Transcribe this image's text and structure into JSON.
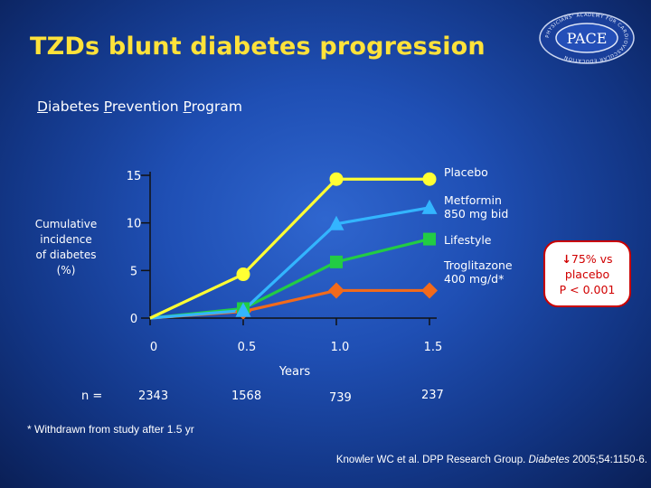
{
  "slide": {
    "title": "TZDs blunt diabetes progression",
    "subtitle": {
      "d": "D",
      "iabetes": "iabetes ",
      "p1": "P",
      "revention": "revention ",
      "p2": "P",
      "rogram": "rogram"
    },
    "logo_text": "PACE",
    "logo_ring_text": "PHYSICIANS' ACADEMY FOR CARDIOVASCULAR EDUCATION",
    "ylabel_lines": [
      "Cumulative",
      "incidence",
      "of diabetes",
      "(%)"
    ],
    "callout": {
      "line1": "75% vs",
      "line2": "placebo",
      "line3": "P < 0.001"
    },
    "n_label": "n =",
    "n_values": [
      "2343",
      "1568",
      "739",
      "237"
    ],
    "footnote": "* Withdrawn from study after 1.5 yr",
    "citation": {
      "prefix": "Knowler WC et al. DPP Research Group. ",
      "journal": "Diabetes",
      "suffix": " 2005;54:1150-6."
    }
  },
  "colors": {
    "title": "#ffe23a",
    "placebo": "#ffff33",
    "metformin": "#33b5ff",
    "lifestyle": "#22cc44",
    "troglitazone": "#f26a1b",
    "callout_text": "#d10000"
  },
  "chart_data": {
    "type": "line",
    "title": "",
    "xlabel": "Years",
    "ylabel": "Cumulative incidence of diabetes (%)",
    "x": [
      0,
      0.5,
      1.0,
      1.5
    ],
    "x_tick_labels": [
      "0",
      "0.5",
      "1.0",
      "1.5"
    ],
    "y_ticks": [
      0,
      5,
      10,
      15
    ],
    "y_tick_labels": [
      "0",
      "5",
      "10",
      "15"
    ],
    "xlim": [
      0,
      1.5
    ],
    "ylim": [
      0,
      15
    ],
    "series": [
      {
        "name": "Placebo",
        "label_lines": [
          "Placebo"
        ],
        "marker": "circle",
        "color_key": "placebo",
        "x": [
          0,
          0.5,
          1.0,
          1.5
        ],
        "values": [
          0,
          4.6,
          14.6,
          14.6
        ]
      },
      {
        "name": "Metformin 850 mg bid",
        "label_lines": [
          "Metformin",
          "850 mg bid"
        ],
        "marker": "triangle",
        "color_key": "metformin",
        "x": [
          0,
          0.5,
          1.0,
          1.5
        ],
        "values": [
          0,
          0.8,
          9.9,
          11.6
        ]
      },
      {
        "name": "Lifestyle",
        "label_lines": [
          "Lifestyle"
        ],
        "marker": "square",
        "color_key": "lifestyle",
        "x": [
          0,
          0.5,
          1.0,
          1.5
        ],
        "values": [
          0,
          1.0,
          5.9,
          8.3
        ]
      },
      {
        "name": "Troglitazone 400 mg/d*",
        "label_lines": [
          "Troglitazone",
          "400 mg/d*"
        ],
        "marker": "diamond",
        "color_key": "troglitazone",
        "x": [
          0,
          0.5,
          1.0,
          1.5
        ],
        "values": [
          0,
          0.7,
          2.9,
          2.9
        ]
      }
    ]
  }
}
